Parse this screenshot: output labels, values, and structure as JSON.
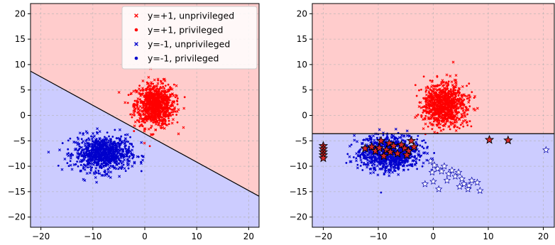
{
  "colors": {
    "class_pos_region": "#ffcccc",
    "class_neg_region": "#ccccff",
    "pos": "#ff0000",
    "neg": "#0000cc",
    "boundary": "#000000",
    "poison_star": "#d62728"
  },
  "legend": {
    "placement": "upper-right",
    "entries": [
      {
        "label": "y=+1, unprivileged",
        "marker": "x",
        "color": "#ff0000"
      },
      {
        "label": "y=+1, privileged",
        "marker": "dot",
        "color": "#ff0000"
      },
      {
        "label": "y=-1, unprivileged",
        "marker": "x",
        "color": "#0000cc"
      },
      {
        "label": "y=-1, privileged",
        "marker": "dot",
        "color": "#0000cc"
      }
    ]
  },
  "chart_data": [
    {
      "type": "scatter",
      "xlim": [
        -22,
        22
      ],
      "ylim": [
        -22,
        22
      ],
      "xticks": [
        -20,
        -10,
        0,
        10,
        20
      ],
      "yticks": [
        -20,
        -15,
        -10,
        -5,
        0,
        5,
        10,
        15,
        20
      ],
      "xtick_labels": [
        "−20",
        "−10",
        "0",
        "10",
        "20"
      ],
      "ytick_labels": [
        "−20",
        "−15",
        "−10",
        "−5",
        "0",
        "5",
        "10",
        "15",
        "20"
      ],
      "grid": true,
      "series": [
        {
          "name": "y=+1, unprivileged",
          "cluster_center": [
            2,
            2
          ],
          "cluster_spread": [
            2.0,
            2.2
          ],
          "marker": "x"
        },
        {
          "name": "y=+1, privileged",
          "cluster_center": [
            2,
            2
          ],
          "cluster_spread": [
            1.8,
            2.0
          ],
          "marker": "dot"
        },
        {
          "name": "y=-1, unprivileged",
          "cluster_center": [
            -8,
            -7.5
          ],
          "cluster_spread": [
            2.8,
            1.8
          ],
          "marker": "x"
        },
        {
          "name": "y=-1, privileged",
          "cluster_center": [
            -8,
            -7.5
          ],
          "cluster_spread": [
            2.6,
            1.6
          ],
          "marker": "dot"
        }
      ],
      "decision_boundary": {
        "x": [
          -22,
          22
        ],
        "y": [
          8.7,
          -15.9
        ]
      },
      "region_above": "y=+1",
      "region_below": "y=-1"
    },
    {
      "type": "scatter",
      "xlim": [
        -22,
        22
      ],
      "ylim": [
        -22,
        22
      ],
      "xticks": [
        -20,
        -10,
        0,
        10,
        20
      ],
      "yticks": [
        -20,
        -15,
        -10,
        -5,
        0,
        5,
        10,
        15,
        20
      ],
      "xtick_labels": [
        "−20",
        "−10",
        "0",
        "10",
        "20"
      ],
      "ytick_labels": [
        "−20",
        "−15",
        "−10",
        "−5",
        "0",
        "5",
        "10",
        "15",
        "20"
      ],
      "grid": true,
      "series": [
        {
          "name": "y=+1, unprivileged",
          "cluster_center": [
            2,
            2
          ],
          "cluster_spread": [
            2.0,
            2.2
          ],
          "marker": "x"
        },
        {
          "name": "y=+1, privileged",
          "cluster_center": [
            2,
            2
          ],
          "cluster_spread": [
            1.8,
            2.0
          ],
          "marker": "dot"
        },
        {
          "name": "y=-1, unprivileged",
          "cluster_center": [
            -8,
            -7.5
          ],
          "cluster_spread": [
            2.8,
            1.8
          ],
          "marker": "x"
        },
        {
          "name": "y=-1, privileged",
          "cluster_center": [
            -8,
            -7.5
          ],
          "cluster_spread": [
            2.6,
            1.6
          ],
          "marker": "dot"
        }
      ],
      "decision_boundary": {
        "x": [
          -22,
          22
        ],
        "y": [
          -3.6,
          -3.6
        ]
      },
      "region_above": "y=+1",
      "region_below": "y=-1",
      "poison_points_red_stars": [
        [
          -20,
          -6.0
        ],
        [
          -20,
          -6.6
        ],
        [
          -20,
          -7.2
        ],
        [
          -20,
          -7.8
        ],
        [
          -20,
          -8.4
        ],
        [
          -12.4,
          -6.5
        ],
        [
          -11.2,
          -6.2
        ],
        [
          -10.5,
          -7.0
        ],
        [
          -9.8,
          -6.4
        ],
        [
          -9.0,
          -8.0
        ],
        [
          -8.5,
          -6.8
        ],
        [
          -8.0,
          -5.5
        ],
        [
          -7.2,
          -6.0
        ],
        [
          -6.5,
          -7.5
        ],
        [
          -5.8,
          -5.8
        ],
        [
          -5.2,
          -6.5
        ],
        [
          -4.5,
          -7.0
        ],
        [
          -4.0,
          -5.0
        ],
        [
          -3.5,
          -6.2
        ],
        [
          -4.8,
          -7.8
        ],
        [
          -9.5,
          -5.0
        ],
        [
          -7.8,
          -7.2
        ],
        [
          10.2,
          -4.8
        ],
        [
          13.6,
          -4.9
        ]
      ],
      "poison_points_white_stars": [
        [
          -0.5,
          -9.0
        ],
        [
          0.2,
          -9.8
        ],
        [
          0.8,
          -10.5
        ],
        [
          1.5,
          -11.0
        ],
        [
          -0.2,
          -11.2
        ],
        [
          2.0,
          -10.0
        ],
        [
          2.8,
          -11.5
        ],
        [
          3.4,
          -10.8
        ],
        [
          4.0,
          -12.0
        ],
        [
          4.6,
          -11.2
        ],
        [
          5.2,
          -12.5
        ],
        [
          5.6,
          -13.5
        ],
        [
          6.3,
          -14.5
        ],
        [
          7.0,
          -12.8
        ],
        [
          8.0,
          -13.2
        ],
        [
          8.5,
          -14.8
        ],
        [
          6.5,
          -13.8
        ],
        [
          1.0,
          -14.5
        ],
        [
          0.0,
          -13.0
        ],
        [
          -1.5,
          -13.5
        ],
        [
          2.5,
          -12.8
        ],
        [
          4.8,
          -14.0
        ],
        [
          20.5,
          -6.8
        ]
      ]
    }
  ]
}
